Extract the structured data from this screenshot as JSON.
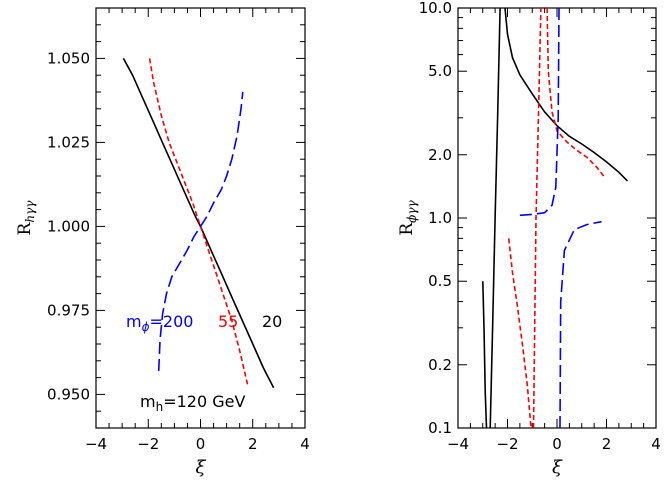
{
  "chart_data": [
    {
      "type": "line",
      "title": "",
      "xlabel": "ξ",
      "ylabel_main": "R",
      "ylabel_sub": "hγγ",
      "xlim": [
        -4,
        4
      ],
      "ylim": [
        0.94,
        1.065
      ],
      "x_ticks": [
        "−4",
        "−2",
        "0",
        "2",
        "4"
      ],
      "y_ticks": [
        "0.950",
        "0.975",
        "1.000",
        "1.025",
        "1.050"
      ],
      "y_tick_values": [
        0.95,
        0.975,
        1.0,
        1.025,
        1.05
      ],
      "x_tick_values": [
        -4,
        -2,
        0,
        2,
        4
      ],
      "annotations": {
        "m_label_main": "m",
        "m_label_sub": "ϕ",
        "m200": "=200",
        "m55": "55",
        "m20": "20",
        "mh_main": "m",
        "mh_sub": "h",
        "mh_value": "=120  GeV"
      },
      "series": [
        {
          "color": "#000000",
          "dash": "solid",
          "points": [
            [
              -2.95,
              1.05
            ],
            [
              -2.6,
              1.045
            ],
            [
              -2.2,
              1.038
            ],
            [
              -1.8,
              1.031
            ],
            [
              -1.4,
              1.024
            ],
            [
              -1.0,
              1.017
            ],
            [
              -0.6,
              1.01
            ],
            [
              -0.2,
              1.003
            ],
            [
              0.0,
              1.0
            ],
            [
              0.4,
              0.993
            ],
            [
              0.8,
              0.986
            ],
            [
              1.2,
              0.979
            ],
            [
              1.6,
              0.972
            ],
            [
              2.0,
              0.965
            ],
            [
              2.4,
              0.958
            ],
            [
              2.8,
              0.952
            ]
          ]
        },
        {
          "color": "#ff0000",
          "dash": "short",
          "points": [
            [
              -1.95,
              1.05
            ],
            [
              -1.8,
              1.043
            ],
            [
              -1.5,
              1.033
            ],
            [
              -1.2,
              1.025
            ],
            [
              -0.9,
              1.019
            ],
            [
              -0.6,
              1.013
            ],
            [
              -0.3,
              1.007
            ],
            [
              0.0,
              1.0
            ],
            [
              0.3,
              0.993
            ],
            [
              0.6,
              0.986
            ],
            [
              0.9,
              0.979
            ],
            [
              1.2,
              0.972
            ],
            [
              1.5,
              0.963
            ],
            [
              1.8,
              0.953
            ]
          ]
        },
        {
          "color": "#0000ff",
          "dash": "long",
          "points": [
            [
              -1.6,
              0.957
            ],
            [
              -1.55,
              0.966
            ],
            [
              -1.45,
              0.974
            ],
            [
              -1.3,
              0.98
            ],
            [
              -1.1,
              0.985
            ],
            [
              -0.8,
              0.989
            ],
            [
              -0.5,
              0.993
            ],
            [
              -0.25,
              0.997
            ],
            [
              0.0,
              1.0
            ],
            [
              0.25,
              1.003
            ],
            [
              0.5,
              1.007
            ],
            [
              0.8,
              1.011
            ],
            [
              1.0,
              1.015
            ],
            [
              1.2,
              1.02
            ],
            [
              1.4,
              1.027
            ],
            [
              1.55,
              1.035
            ],
            [
              1.62,
              1.04
            ]
          ]
        }
      ]
    },
    {
      "type": "line",
      "title": "",
      "xlabel": "ξ",
      "ylabel_main": "R",
      "ylabel_sub": "ϕγγ",
      "xlim": [
        -4,
        4
      ],
      "ylim": [
        0.1,
        10.0
      ],
      "y_scale": "log",
      "x_ticks": [
        "−4",
        "−2",
        "0",
        "2",
        "4"
      ],
      "x_tick_values": [
        -4,
        -2,
        0,
        2,
        4
      ],
      "y_ticks": [
        "0.1",
        "0.2",
        "0.5",
        "1.0",
        "2.0",
        "5.0",
        "10.0"
      ],
      "y_tick_values": [
        0.1,
        0.2,
        0.5,
        1.0,
        2.0,
        5.0,
        10.0
      ],
      "series": [
        {
          "color": "#000000",
          "dash": "solid",
          "segments": [
            [
              [
                -3.0,
                0.5
              ],
              [
                -2.95,
                0.3
              ],
              [
                -2.9,
                0.15
              ],
              [
                -2.85,
                0.1
              ]
            ],
            [
              [
                -2.7,
                0.1
              ],
              [
                -2.6,
                0.3
              ],
              [
                -2.5,
                1.0
              ],
              [
                -2.4,
                3.0
              ],
              [
                -2.3,
                10.0
              ]
            ],
            [
              [
                -2.1,
                10.0
              ],
              [
                -2.0,
                7.5
              ],
              [
                -1.8,
                5.8
              ],
              [
                -1.5,
                4.8
              ],
              [
                -1.0,
                3.9
              ],
              [
                -0.5,
                3.2
              ],
              [
                0.0,
                2.75
              ],
              [
                0.5,
                2.45
              ],
              [
                1.0,
                2.25
              ],
              [
                1.5,
                2.05
              ],
              [
                2.0,
                1.85
              ],
              [
                2.5,
                1.65
              ],
              [
                2.85,
                1.5
              ]
            ]
          ]
        },
        {
          "color": "#ff0000",
          "dash": "short",
          "segments": [
            [
              [
                -1.95,
                0.8
              ],
              [
                -1.8,
                0.55
              ],
              [
                -1.6,
                0.38
              ],
              [
                -1.4,
                0.25
              ],
              [
                -1.2,
                0.16
              ],
              [
                -1.05,
                0.1
              ]
            ],
            [
              [
                -0.95,
                0.1
              ],
              [
                -0.9,
                0.3
              ],
              [
                -0.85,
                1.0
              ],
              [
                -0.75,
                3.0
              ],
              [
                -0.65,
                10.0
              ]
            ],
            [
              [
                -0.4,
                10.0
              ],
              [
                -0.35,
                5.0
              ],
              [
                -0.2,
                3.2
              ],
              [
                0.0,
                2.6
              ],
              [
                0.4,
                2.3
              ],
              [
                0.8,
                2.1
              ],
              [
                1.2,
                1.95
              ],
              [
                1.6,
                1.75
              ],
              [
                1.95,
                1.55
              ]
            ]
          ]
        },
        {
          "color": "#0000ff",
          "dash": "long",
          "segments": [
            [
              [
                -1.5,
                1.03
              ],
              [
                -1.0,
                1.04
              ],
              [
                -0.5,
                1.06
              ],
              [
                -0.2,
                1.15
              ],
              [
                -0.05,
                1.4
              ],
              [
                0.05,
                3.0
              ],
              [
                0.08,
                10.0
              ]
            ],
            [
              [
                0.12,
                0.1
              ],
              [
                0.15,
                0.4
              ],
              [
                0.3,
                0.7
              ],
              [
                0.7,
                0.88
              ],
              [
                1.2,
                0.93
              ],
              [
                1.8,
                0.96
              ]
            ]
          ]
        }
      ]
    }
  ]
}
